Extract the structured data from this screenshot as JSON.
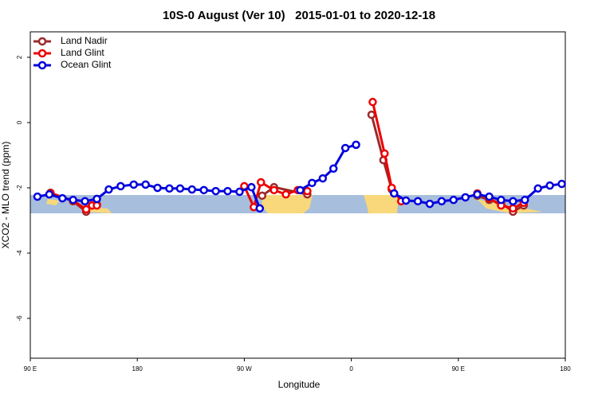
{
  "chart_data": {
    "type": "line",
    "title": "10S-0 August (Ver 10)   2015-01-01 to 2020-12-18",
    "x_label": "Longitude",
    "y_label": "XCO2 - MLO trend (ppm)",
    "xlim": [
      90,
      540
    ],
    "ylim": [
      -7.22,
      2.78
    ],
    "xticks": [
      {
        "value": 90,
        "label": "90 E"
      },
      180,
      {
        "value": 270,
        "label": "90 W"
      },
      {
        "value": 360,
        "label": "0"
      },
      {
        "value": 450,
        "label": "90 E"
      },
      {
        "value": 540,
        "label": "180"
      }
    ],
    "yticks": [
      2,
      0,
      -2,
      -4,
      -6
    ],
    "legend": "top-left",
    "series": [
      {
        "name": "Land Nadir",
        "color": "#9b2b2b",
        "x": [
          107,
          126,
          137,
          142,
          146,
          null,
          285,
          295,
          323,
          null,
          377,
          387,
          394,
          null,
          466,
          476,
          486,
          496,
          505
        ],
        "values": [
          -2.15,
          -2.41,
          -2.73,
          -2.54,
          -2.51,
          null,
          -2.24,
          -1.98,
          -2.2,
          null,
          0.24,
          -1.15,
          -2.05,
          null,
          -2.24,
          -2.37,
          -2.46,
          -2.73,
          -2.54
        ]
      },
      {
        "name": "Land Glint",
        "color": "#ee0000",
        "x": [
          107,
          126,
          137,
          142,
          146,
          null,
          270,
          278,
          284,
          295,
          305,
          315,
          323,
          null,
          378,
          388,
          394,
          402,
          null,
          466,
          476,
          486,
          496,
          505
        ],
        "values": [
          -2.17,
          -2.39,
          -2.66,
          -2.54,
          -2.54,
          null,
          -1.95,
          -2.59,
          -1.83,
          -2.07,
          -2.2,
          -2.07,
          -2.1,
          null,
          0.63,
          -0.95,
          -2.0,
          -2.41,
          null,
          -2.17,
          -2.32,
          -2.54,
          -2.63,
          -2.46
        ]
      },
      {
        "name": "Ocean Glint",
        "color": "#0000dd",
        "x": [
          96,
          106,
          117,
          126,
          136,
          146,
          156,
          166,
          177,
          187,
          197,
          207,
          216,
          226,
          236,
          246,
          256,
          266,
          276,
          283,
          null,
          317,
          327,
          336,
          345,
          355,
          364,
          null,
          396,
          406,
          416,
          426,
          436,
          446,
          456,
          466,
          476,
          486,
          496,
          506,
          517,
          527,
          537
        ],
        "values": [
          -2.27,
          -2.2,
          -2.32,
          -2.37,
          -2.41,
          -2.34,
          -2.05,
          -1.95,
          -1.9,
          -1.9,
          -2.0,
          -2.02,
          -2.02,
          -2.05,
          -2.07,
          -2.1,
          -2.1,
          -2.12,
          -1.98,
          -2.63,
          null,
          -2.07,
          -1.85,
          -1.71,
          -1.41,
          -0.78,
          -0.68,
          null,
          -2.17,
          -2.39,
          -2.41,
          -2.49,
          -2.41,
          -2.37,
          -2.29,
          -2.2,
          -2.27,
          -2.37,
          -2.41,
          -2.37,
          -2.02,
          -1.93,
          -1.88
        ]
      }
    ]
  }
}
